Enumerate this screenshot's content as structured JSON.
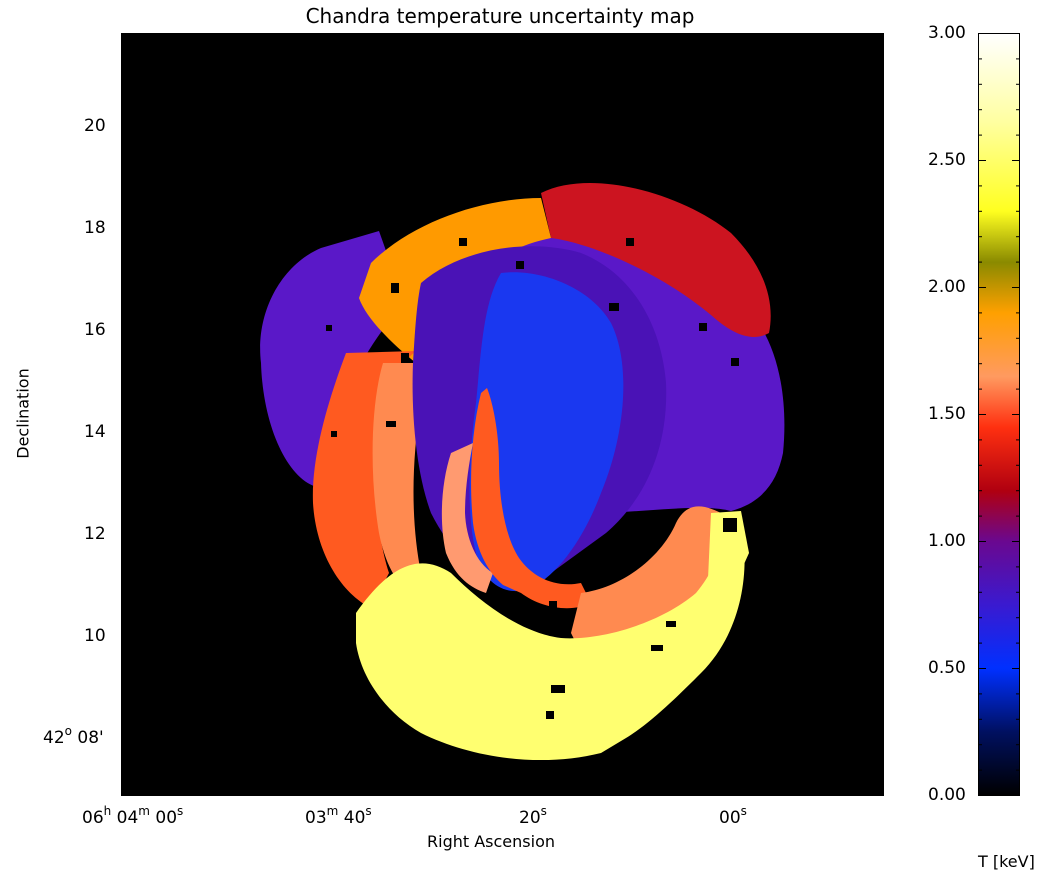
{
  "chart_data": {
    "type": "heatmap",
    "title": "Chandra temperature uncertainty map",
    "xlabel": "Right Ascension",
    "ylabel": "Declination",
    "x_ticks": [
      {
        "h": "06",
        "m": "04",
        "s": "00",
        "hU": "h",
        "mU": "m",
        "sU": "s"
      },
      {
        "h": "",
        "m": "03",
        "s": "40",
        "hU": "",
        "mU": "m",
        "sU": "s"
      },
      {
        "h": "",
        "m": "",
        "s": "20",
        "hU": "",
        "mU": "",
        "sU": "s"
      },
      {
        "h": "",
        "m": "",
        "s": "00",
        "hU": "",
        "mU": "",
        "sU": "s"
      }
    ],
    "y_ticks": [
      {
        "value": "20"
      },
      {
        "value": "18"
      },
      {
        "value": "16"
      },
      {
        "value": "14"
      },
      {
        "value": "12"
      },
      {
        "value": "10"
      },
      {
        "deg": "42",
        "degU": "o",
        "min": "08'"
      }
    ],
    "colorbar": {
      "label": "T [keV]",
      "range": [
        0.0,
        3.0
      ],
      "ticks": [
        "3.00",
        "2.50",
        "2.00",
        "1.50",
        "1.00",
        "0.50",
        "0.00"
      ],
      "tick_values": [
        3.0,
        2.5,
        2.0,
        1.5,
        1.0,
        0.5,
        0.0
      ],
      "stops": [
        {
          "v": 0.0,
          "color": "#000000"
        },
        {
          "v": 0.25,
          "color": "#001060"
        },
        {
          "v": 0.5,
          "color": "#0030ff"
        },
        {
          "v": 0.75,
          "color": "#3a1ad0"
        },
        {
          "v": 1.0,
          "color": "#6a0890"
        },
        {
          "v": 1.2,
          "color": "#b00010"
        },
        {
          "v": 1.45,
          "color": "#ff3010"
        },
        {
          "v": 1.65,
          "color": "#ff9a60"
        },
        {
          "v": 1.9,
          "color": "#ffa000"
        },
        {
          "v": 2.1,
          "color": "#8a8a00"
        },
        {
          "v": 2.3,
          "color": "#ffff20"
        },
        {
          "v": 2.65,
          "color": "#ffffa0"
        },
        {
          "v": 3.0,
          "color": "#ffffff"
        }
      ]
    },
    "region_colors": {
      "outer_purple": "#5a18c8",
      "inner_purple": "#4a12b6",
      "core_blue": "#1a38f0",
      "red": "#cc1420",
      "orange": "#ff9a00",
      "dark_orange": "#ff5a20",
      "light_orange": "#ff8a50",
      "salmon": "#ff9a70",
      "yellow": "#ffff70"
    }
  }
}
